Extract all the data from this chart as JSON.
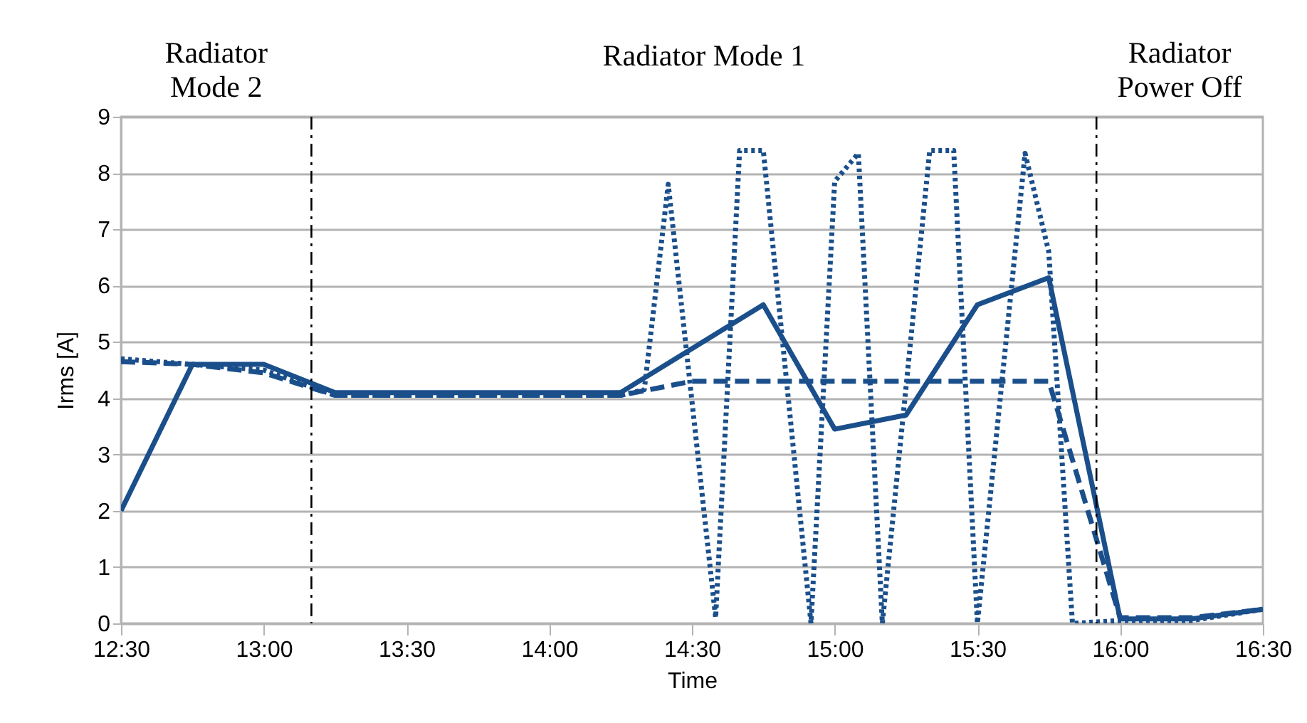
{
  "chart_data": {
    "type": "line",
    "xlabel": "Time",
    "ylabel": "Irms [A]",
    "xlim": [
      12.5,
      16.5
    ],
    "xticks": [
      {
        "value": 12.5,
        "label": "12:30"
      },
      {
        "value": 13,
        "label": "13:00"
      },
      {
        "value": 13.5,
        "label": "13:30"
      },
      {
        "value": 14,
        "label": "14:00"
      },
      {
        "value": 14.5,
        "label": "14:30"
      },
      {
        "value": 15,
        "label": "15:00"
      },
      {
        "value": 15.5,
        "label": "15:30"
      },
      {
        "value": 16,
        "label": "16:00"
      },
      {
        "value": 16.5,
        "label": "16:30"
      }
    ],
    "ylim": [
      0,
      9
    ],
    "yticks": [
      0,
      1,
      2,
      3,
      4,
      5,
      6,
      7,
      8,
      9
    ],
    "grid": "y",
    "marker": "none",
    "series": [
      {
        "color": "#1a4f8b",
        "line_style": "solid",
        "x": [
          12.5,
          12.75,
          13.0,
          13.25,
          14.25,
          14.75,
          15.0,
          15.25,
          15.5,
          15.75,
          16.0,
          16.25,
          16.5
        ],
        "values": [
          2.0,
          4.6,
          4.6,
          4.1,
          4.1,
          5.66,
          3.45,
          3.7,
          5.66,
          6.14,
          0.08,
          0.08,
          0.25
        ]
      },
      {
        "color": "#1a4f8b",
        "line_style": "dashed",
        "x": [
          12.5,
          12.75,
          13.0,
          13.25,
          14.25,
          14.5,
          15.75,
          16.0,
          16.25,
          16.5
        ],
        "values": [
          4.65,
          4.6,
          4.45,
          4.05,
          4.05,
          4.3,
          4.3,
          0.1,
          0.1,
          0.25
        ]
      },
      {
        "color": "#1a4f8b",
        "line_style": "dotted",
        "x": [
          12.5,
          12.75,
          13.0,
          13.25,
          14.25,
          14.333,
          14.417,
          14.583,
          14.667,
          14.75,
          14.917,
          15.0,
          15.083,
          15.167,
          15.333,
          15.417,
          15.5,
          15.667,
          15.75,
          15.833,
          16.0,
          16.25,
          16.5
        ],
        "values": [
          4.7,
          4.6,
          4.5,
          4.05,
          4.05,
          4.15,
          7.8,
          0.1,
          8.4,
          8.4,
          0.0,
          7.85,
          8.35,
          0.0,
          8.4,
          8.4,
          0.0,
          8.35,
          6.6,
          0.0,
          0.05,
          0.05,
          0.25
        ]
      }
    ],
    "ref_lines": [
      {
        "axis": "x",
        "value": 13.167,
        "line_style": "dashdot",
        "color": "#000000"
      },
      {
        "axis": "x",
        "value": 15.917,
        "line_style": "dashdot",
        "color": "#000000"
      }
    ],
    "annotations": [
      "Radiator\nMode 2",
      "Radiator Mode 1",
      "Radiator\nPower Off"
    ]
  }
}
